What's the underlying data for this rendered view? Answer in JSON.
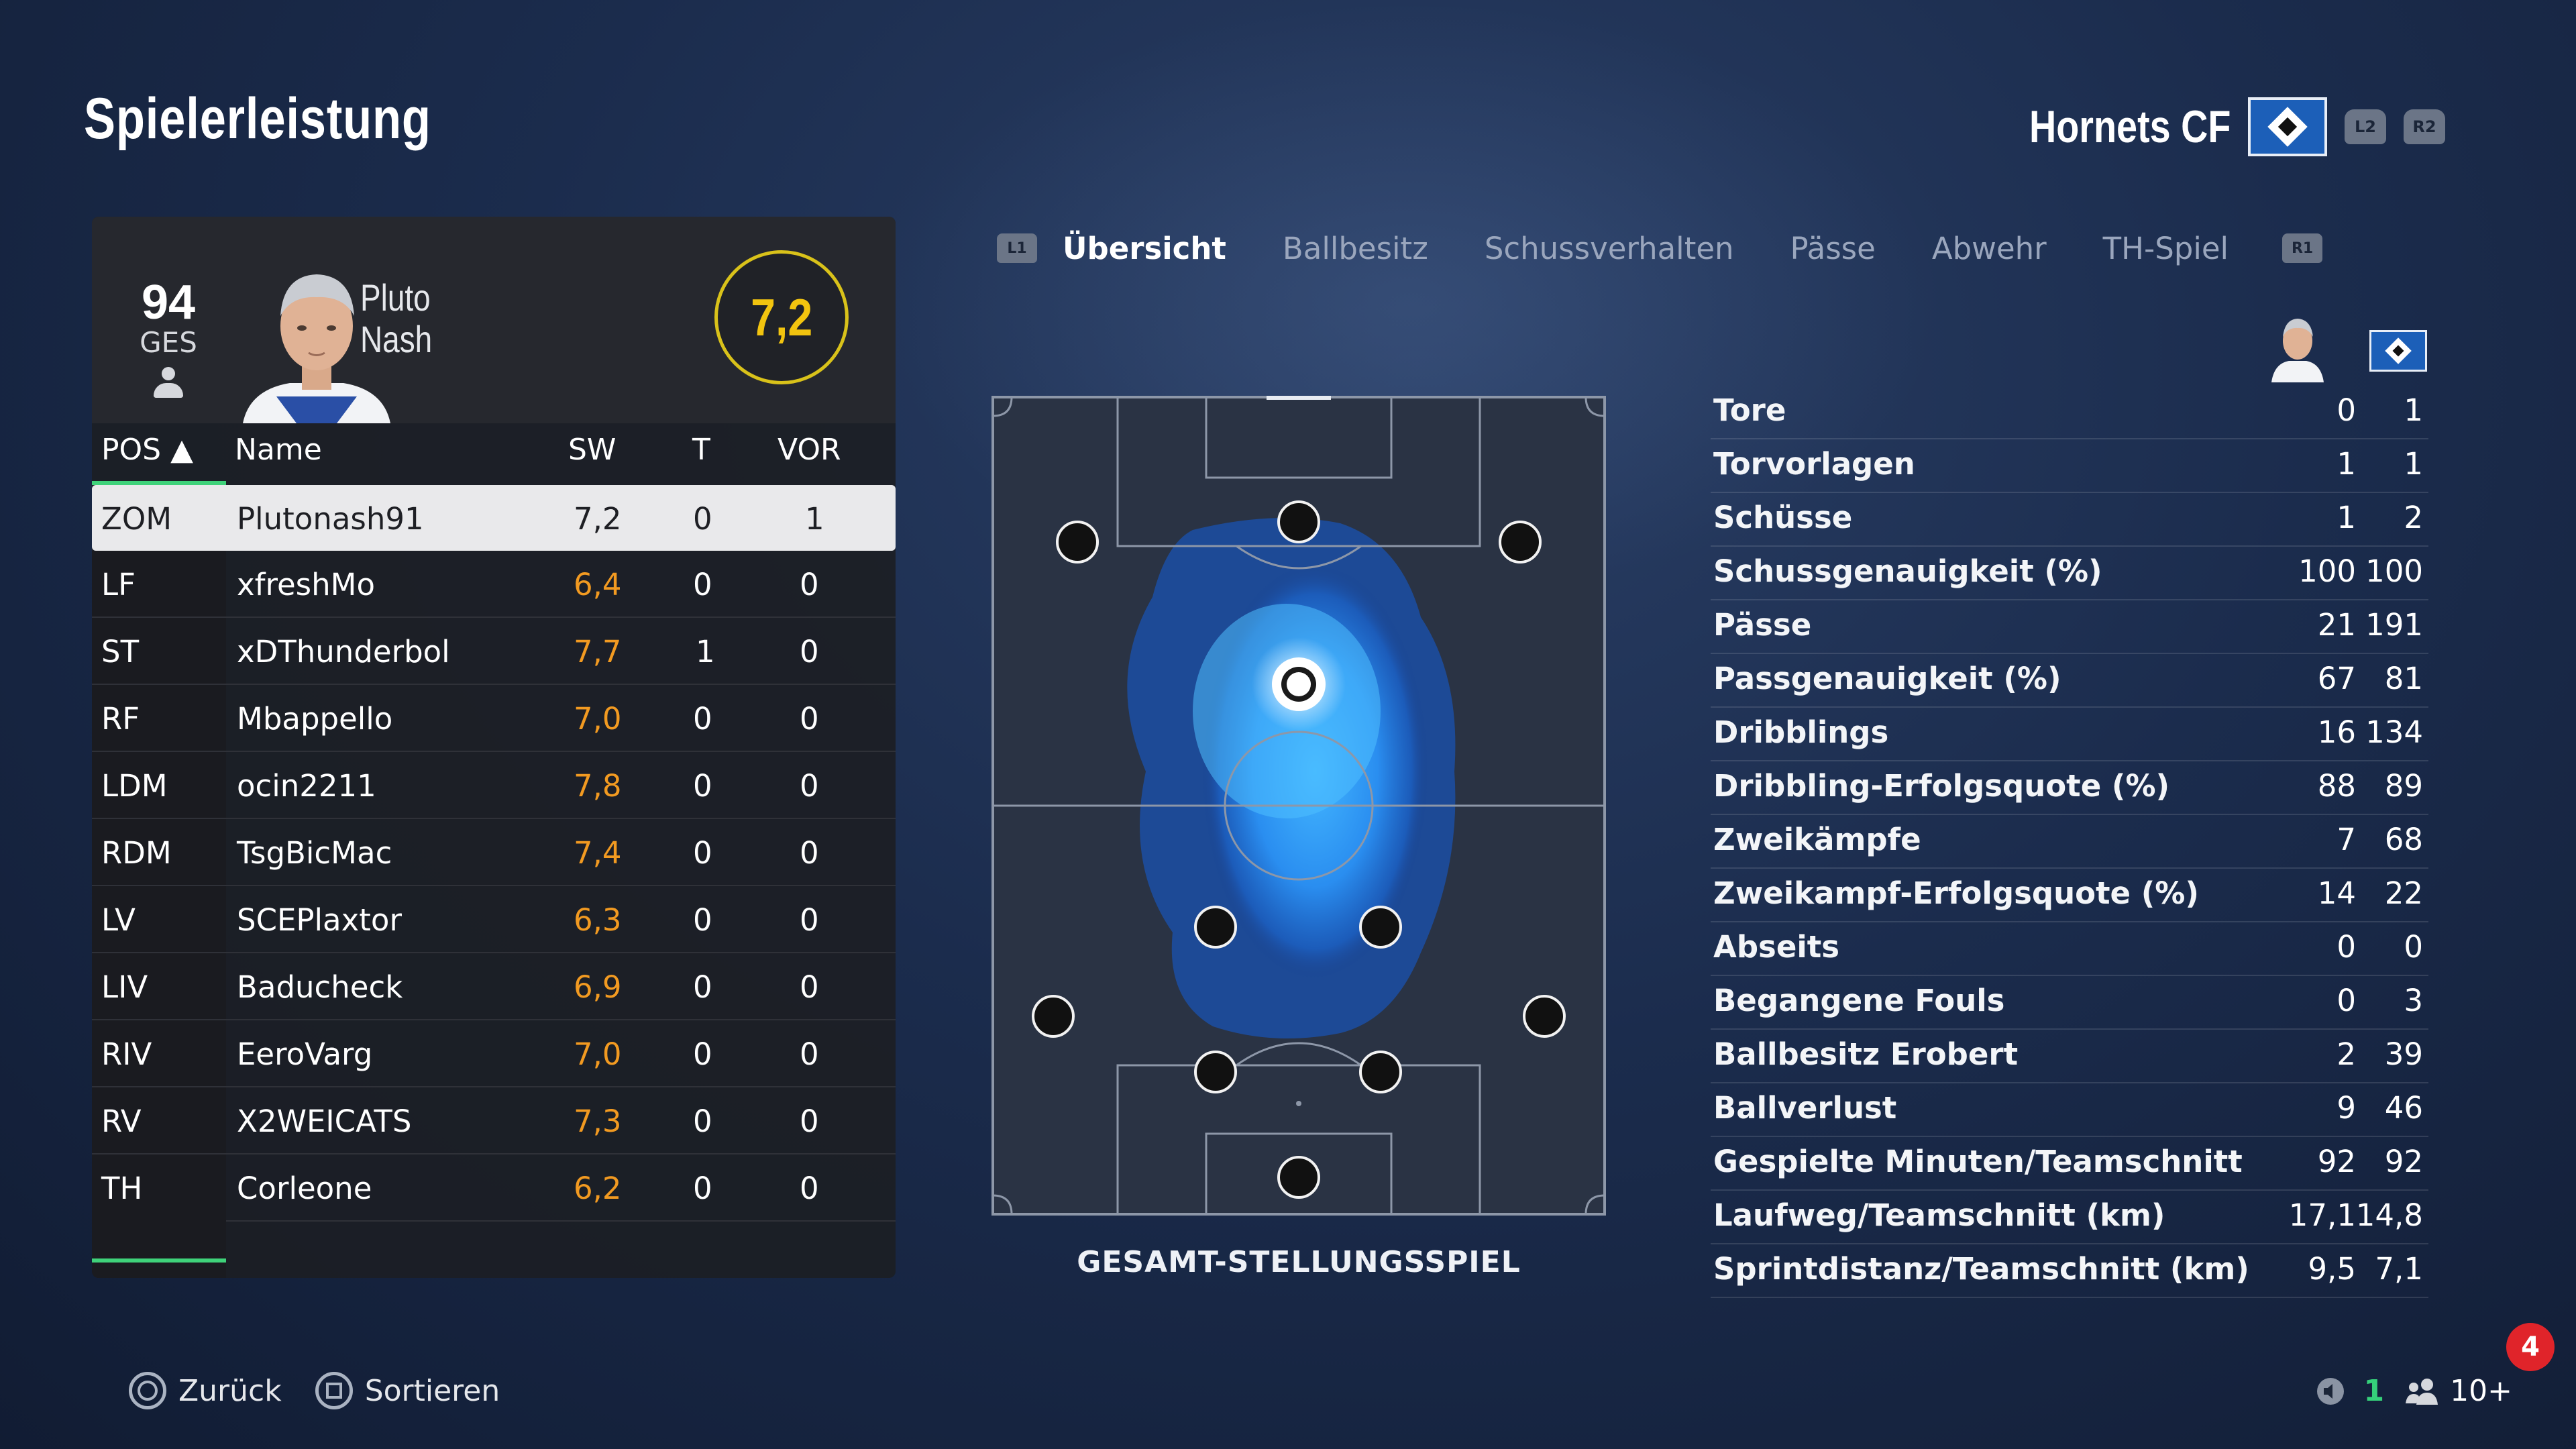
{
  "page": {
    "title": "Spielerleistung"
  },
  "team": {
    "name": "Hornets CF",
    "l2": "L2",
    "r2": "R2"
  },
  "player_card": {
    "overall": "94",
    "overall_label": "GES",
    "first_name": "Pluto",
    "last_name": "Nash",
    "rating": "7,2"
  },
  "table": {
    "headers": {
      "pos": "POS ▲",
      "name": "Name",
      "sw": "SW",
      "t": "T",
      "vor": "VOR"
    },
    "rows": [
      {
        "pos": "ZOM",
        "name": "Plutonash91",
        "sw": "7,2",
        "t": "0",
        "vor": "1"
      },
      {
        "pos": "LF",
        "name": "xfreshMo",
        "sw": "6,4",
        "t": "0",
        "vor": "0"
      },
      {
        "pos": "ST",
        "name": "xDThunderbol",
        "sw": "7,7",
        "t": "1",
        "vor": "0"
      },
      {
        "pos": "RF",
        "name": "Mbappello",
        "sw": "7,0",
        "t": "0",
        "vor": "0"
      },
      {
        "pos": "LDM",
        "name": "ocin2211",
        "sw": "7,8",
        "t": "0",
        "vor": "0"
      },
      {
        "pos": "RDM",
        "name": "TsgBicMac",
        "sw": "7,4",
        "t": "0",
        "vor": "0"
      },
      {
        "pos": "LV",
        "name": "SCEPlaxtor",
        "sw": "6,3",
        "t": "0",
        "vor": "0"
      },
      {
        "pos": "LIV",
        "name": "Baducheck",
        "sw": "6,9",
        "t": "0",
        "vor": "0"
      },
      {
        "pos": "RIV",
        "name": "EeroVarg",
        "sw": "7,0",
        "t": "0",
        "vor": "0"
      },
      {
        "pos": "RV",
        "name": "X2WEICATS",
        "sw": "7,3",
        "t": "0",
        "vor": "0"
      },
      {
        "pos": "TH",
        "name": "Corleone",
        "sw": "6,2",
        "t": "0",
        "vor": "0"
      }
    ]
  },
  "tabs": {
    "l1": "L1",
    "r1": "R1",
    "items": [
      {
        "label": "Übersicht",
        "active": true
      },
      {
        "label": "Ballbesitz"
      },
      {
        "label": "Schussverhalten"
      },
      {
        "label": "Pässe"
      },
      {
        "label": "Abwehr"
      },
      {
        "label": "TH-Spiel"
      }
    ]
  },
  "pitch": {
    "caption": "GESAMT-STELLUNGSSPIEL"
  },
  "stats": [
    {
      "label": "Tore",
      "player": "0",
      "team": "1"
    },
    {
      "label": "Torvorlagen",
      "player": "1",
      "team": "1"
    },
    {
      "label": "Schüsse",
      "player": "1",
      "team": "2"
    },
    {
      "label": "Schussgenauigkeit (%)",
      "player": "100",
      "team": "100"
    },
    {
      "label": "Pässe",
      "player": "21",
      "team": "191"
    },
    {
      "label": "Passgenauigkeit (%)",
      "player": "67",
      "team": "81"
    },
    {
      "label": "Dribblings",
      "player": "16",
      "team": "134"
    },
    {
      "label": "Dribbling-Erfolgsquote (%)",
      "player": "88",
      "team": "89"
    },
    {
      "label": "Zweikämpfe",
      "player": "7",
      "team": "68"
    },
    {
      "label": "Zweikampf-Erfolgsquote (%)",
      "player": "14",
      "team": "22"
    },
    {
      "label": "Abseits",
      "player": "0",
      "team": "0"
    },
    {
      "label": "Begangene Fouls",
      "player": "0",
      "team": "3"
    },
    {
      "label": "Ballbesitz Erobert",
      "player": "2",
      "team": "39"
    },
    {
      "label": "Ballverlust",
      "player": "9",
      "team": "46"
    },
    {
      "label": "Gespielte Minuten/Teamschnitt",
      "player": "92",
      "team": "92"
    },
    {
      "label": "Laufweg/Teamschnitt (km)",
      "player": "17,1",
      "team": "14,8"
    },
    {
      "label": "Sprintdistanz/Teamschnitt (km)",
      "player": "9,5",
      "team": "7,1"
    }
  ],
  "footer": {
    "back": "Zurück",
    "sort": "Sortieren",
    "green_count": "1",
    "players_count": "10+",
    "notification": "4"
  },
  "colors": {
    "accent_green": "#3fd27a",
    "rating_orange": "#f29a21",
    "rating_yellow": "#f2c40f",
    "badge_blue": "#1c5fb8"
  }
}
